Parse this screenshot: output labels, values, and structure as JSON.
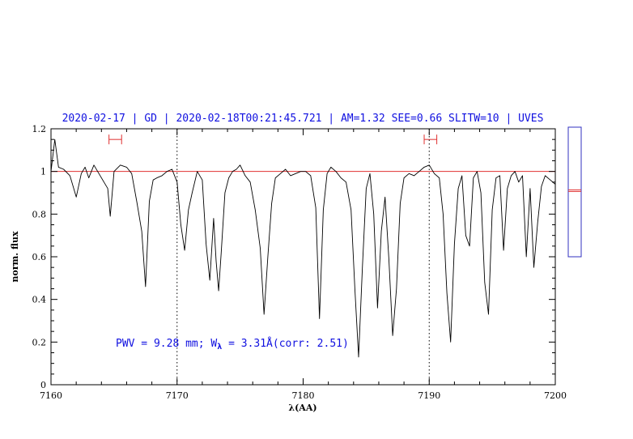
{
  "header": {
    "title": "2020-02-17 | GD | 2020-02-18T00:21:45.721 | AM=1.32 SEE=0.66 SLITW=10 | UVES"
  },
  "annotation": {
    "pwv_prefix": "PWV = 9.28 mm; W",
    "subscript": "λ",
    "pwv_suffix": " = 3.31Å(corr: 2.51)"
  },
  "colors": {
    "spectrum": "#000000",
    "continuum": "#e03030",
    "marker": "#e03030",
    "annotation": "#1010e0",
    "side_box": "#3030c0"
  },
  "chart_data": {
    "type": "line",
    "xlabel": "λ(AA)",
    "ylabel": "norm. flux",
    "xlim": [
      7160,
      7200
    ],
    "ylim": [
      0,
      1.2
    ],
    "x_ticks": [
      7160,
      7170,
      7180,
      7190,
      7200
    ],
    "x_tick_labels": [
      "7160",
      "7170",
      "7180",
      "7190",
      "7200"
    ],
    "y_ticks": [
      0,
      0.2,
      0.4,
      0.6,
      0.8,
      1,
      1.2
    ],
    "y_tick_labels": [
      "0",
      "0.2",
      "0.4",
      "0.6",
      "0.8",
      "1",
      "1.2"
    ],
    "continuum_level": 1.0,
    "vertical_dotted_lines": [
      7170,
      7190
    ],
    "continuum_windows": [
      [
        7164.6,
        7165.6
      ],
      [
        7189.6,
        7190.6
      ]
    ],
    "window_marker_y": 1.15,
    "side_indicator_level": 1.02,
    "spectrum": {
      "x": [
        7160.0,
        7160.3,
        7160.6,
        7161.0,
        7161.5,
        7162.0,
        7162.4,
        7162.7,
        7163.0,
        7163.4,
        7163.8,
        7164.2,
        7164.5,
        7164.7,
        7165.0,
        7165.5,
        7166.0,
        7166.4,
        7166.8,
        7167.2,
        7167.5,
        7167.8,
        7168.1,
        7168.4,
        7168.8,
        7169.2,
        7169.6,
        7170.0,
        7170.3,
        7170.6,
        7170.9,
        7171.2,
        7171.6,
        7172.0,
        7172.3,
        7172.6,
        7172.9,
        7173.1,
        7173.3,
        7173.5,
        7173.8,
        7174.1,
        7174.4,
        7174.7,
        7175.0,
        7175.4,
        7175.8,
        7176.2,
        7176.6,
        7176.9,
        7177.2,
        7177.5,
        7177.8,
        7178.2,
        7178.6,
        7179.0,
        7179.4,
        7179.8,
        7180.2,
        7180.6,
        7181.0,
        7181.3,
        7181.6,
        7181.9,
        7182.2,
        7182.6,
        7183.0,
        7183.4,
        7183.8,
        7184.1,
        7184.4,
        7184.7,
        7185.0,
        7185.3,
        7185.6,
        7185.9,
        7186.2,
        7186.5,
        7186.8,
        7187.1,
        7187.4,
        7187.7,
        7188.0,
        7188.4,
        7188.8,
        7189.2,
        7189.6,
        7190.0,
        7190.4,
        7190.8,
        7191.1,
        7191.4,
        7191.7,
        7192.0,
        7192.3,
        7192.6,
        7192.9,
        7193.2,
        7193.5,
        7193.8,
        7194.1,
        7194.4,
        7194.7,
        7195.0,
        7195.3,
        7195.6,
        7195.9,
        7196.2,
        7196.5,
        7196.8,
        7197.1,
        7197.4,
        7197.7,
        7198.0,
        7198.3,
        7198.6,
        7198.9,
        7199.2,
        7199.6,
        7200.0
      ],
      "y": [
        1.0,
        1.15,
        1.02,
        1.01,
        0.98,
        0.88,
        0.99,
        1.02,
        0.97,
        1.03,
        0.99,
        0.95,
        0.92,
        0.79,
        1.0,
        1.03,
        1.02,
        0.99,
        0.86,
        0.72,
        0.46,
        0.86,
        0.96,
        0.97,
        0.98,
        1.0,
        1.01,
        0.95,
        0.75,
        0.63,
        0.82,
        0.9,
        1.0,
        0.96,
        0.66,
        0.49,
        0.78,
        0.58,
        0.44,
        0.62,
        0.9,
        0.97,
        1.0,
        1.01,
        1.03,
        0.98,
        0.95,
        0.82,
        0.64,
        0.33,
        0.6,
        0.85,
        0.97,
        0.99,
        1.01,
        0.98,
        0.99,
        1.0,
        1.0,
        0.98,
        0.83,
        0.31,
        0.82,
        0.99,
        1.02,
        1.0,
        0.97,
        0.95,
        0.82,
        0.45,
        0.13,
        0.55,
        0.92,
        0.99,
        0.8,
        0.36,
        0.72,
        0.88,
        0.59,
        0.23,
        0.45,
        0.85,
        0.97,
        0.99,
        0.98,
        1.0,
        1.02,
        1.03,
        0.99,
        0.97,
        0.8,
        0.43,
        0.2,
        0.66,
        0.92,
        0.98,
        0.7,
        0.65,
        0.97,
        1.0,
        0.9,
        0.48,
        0.33,
        0.82,
        0.97,
        0.98,
        0.63,
        0.92,
        0.98,
        1.0,
        0.95,
        0.98,
        0.6,
        0.92,
        0.55,
        0.76,
        0.93,
        0.98,
        0.96,
        0.94
      ]
    }
  }
}
